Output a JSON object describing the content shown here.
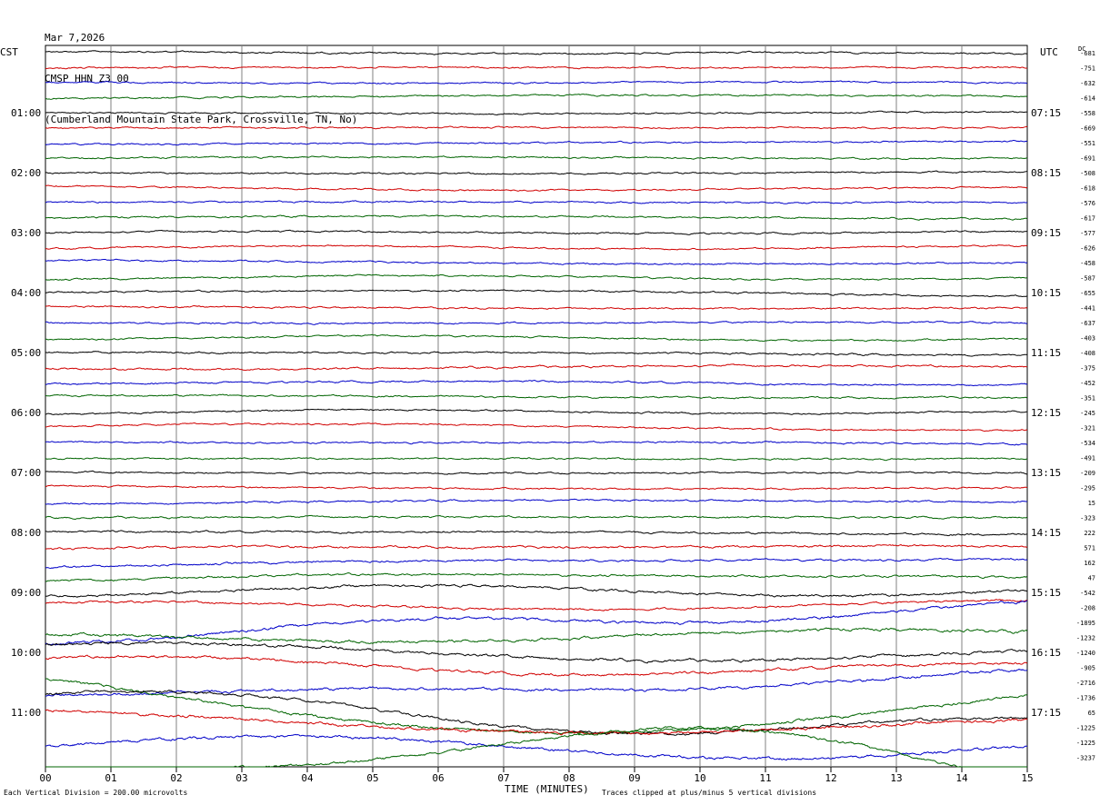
{
  "header": {
    "date": "Mar 7,2026",
    "station": "CMSP HHN Z3 00",
    "location": "(Cumberland Mountain State Park, Crossville, TN, No)"
  },
  "labels": {
    "left_tz": "CST",
    "right_tz": "UTC",
    "dc": "DC"
  },
  "footer": {
    "x_title": "TIME (MINUTES)",
    "scale": "Each Vertical Division =  200.00 microvolts",
    "clip": "Traces clipped at plus/minus 5 vertical divisions"
  },
  "colors": {
    "trace_cycle": [
      "#000000",
      "#d00000",
      "#0000c8",
      "#006400"
    ],
    "grid": "#808080"
  },
  "chart_data": {
    "type": "line",
    "title": "CMSP HHN Z3 00",
    "xlabel": "TIME (MINUTES)",
    "xlim": [
      0,
      15
    ],
    "x_ticks": [
      "00",
      "01",
      "02",
      "03",
      "04",
      "05",
      "06",
      "07",
      "08",
      "09",
      "10",
      "11",
      "12",
      "13",
      "14",
      "15"
    ],
    "rows_per_hour": 4,
    "left_hour_labels": [
      "01:00",
      "02:00",
      "03:00",
      "04:00",
      "05:00",
      "06:00",
      "07:00",
      "08:00",
      "09:00",
      "10:00",
      "11:00"
    ],
    "right_hour_labels": [
      "07:15",
      "08:15",
      "09:15",
      "10:15",
      "11:15",
      "12:15",
      "13:15",
      "14:15",
      "15:15",
      "16:15",
      "17:15"
    ],
    "dc_offsets": [
      "-681",
      "-751",
      "-632",
      "-614",
      "-558",
      "-669",
      "-551",
      "-691",
      "-508",
      "-618",
      "-576",
      "-617",
      "-577",
      "-626",
      "-458",
      "-587",
      "-655",
      "-441",
      "-637",
      "-403",
      "-408",
      "-375",
      "-452",
      "-351",
      "-245",
      "-321",
      "-534",
      "-491",
      "-209",
      "-295",
      "15",
      "-323",
      "222",
      "571",
      "162",
      "47",
      "-542",
      "-208",
      "-1895",
      "-1232",
      "-1240",
      "-905",
      "-2716",
      "-1736",
      "65",
      "-1225",
      "-1225",
      "-3237"
    ],
    "trace_activity": [
      0.3,
      0.3,
      0.3,
      0.3,
      0.3,
      0.3,
      0.3,
      0.3,
      0.3,
      0.3,
      0.35,
      0.35,
      0.35,
      0.35,
      0.35,
      0.35,
      0.4,
      0.4,
      0.4,
      0.4,
      0.5,
      0.8,
      0.5,
      0.5,
      0.4,
      0.4,
      0.4,
      0.4,
      0.4,
      0.45,
      0.5,
      0.6,
      0.8,
      1.2,
      1.0,
      1.1,
      1.5,
      1.2,
      4.5,
      2.2,
      2.0,
      1.8,
      4.0,
      4.0,
      5.0,
      4.5,
      6.0,
      8.0
    ],
    "grid": true
  }
}
